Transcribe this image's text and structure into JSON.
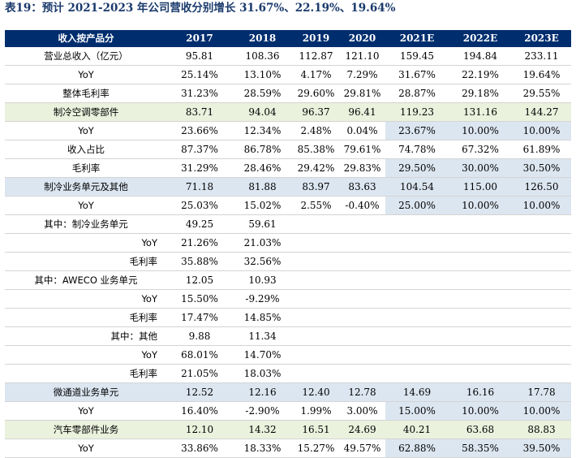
{
  "title": "表19：预计 2021-2023 年公司营收分别增长 31.67%、22.19%、19.64%",
  "header": {
    "label": "收入按产品分",
    "years": [
      "2017",
      "2018",
      "2019",
      "2020",
      "2021E",
      "2022E",
      "2023E"
    ]
  },
  "rows": [
    {
      "label": "营业总收入（亿元）",
      "values": [
        "95.81",
        "108.36",
        "112.87",
        "121.10",
        "159.45",
        "194.84",
        "233.11"
      ],
      "style": "",
      "indent": "0",
      "hl": []
    },
    {
      "label": "YoY",
      "values": [
        "25.14%",
        "13.10%",
        "4.17%",
        "7.29%",
        "31.67%",
        "22.19%",
        "19.64%"
      ],
      "style": "",
      "indent": "0",
      "hl": []
    },
    {
      "label": "整体毛利率",
      "values": [
        "31.23%",
        "28.59%",
        "29.60%",
        "29.81%",
        "28.87%",
        "29.18%",
        "29.55%"
      ],
      "style": "",
      "indent": "0",
      "hl": []
    },
    {
      "label": "制冷空调零部件",
      "values": [
        "83.71",
        "94.04",
        "96.37",
        "96.41",
        "119.23",
        "131.16",
        "144.27"
      ],
      "style": "green",
      "indent": "0",
      "hl": []
    },
    {
      "label": "YoY",
      "values": [
        "23.66%",
        "12.34%",
        "2.48%",
        "0.04%",
        "23.67%",
        "10.00%",
        "10.00%"
      ],
      "style": "",
      "indent": "0",
      "hl": [
        4,
        5,
        6
      ]
    },
    {
      "label": "收入占比",
      "values": [
        "87.37%",
        "86.78%",
        "85.38%",
        "79.61%",
        "74.78%",
        "67.32%",
        "61.89%"
      ],
      "style": "",
      "indent": "0",
      "hl": []
    },
    {
      "label": "毛利率",
      "values": [
        "31.29%",
        "28.46%",
        "29.42%",
        "29.83%",
        "29.50%",
        "30.00%",
        "30.50%"
      ],
      "style": "",
      "indent": "0",
      "hl": [
        4,
        5,
        6
      ]
    },
    {
      "label": "制冷业务单元及其他",
      "values": [
        "71.18",
        "81.88",
        "83.97",
        "83.63",
        "104.54",
        "115.00",
        "126.50"
      ],
      "style": "blue",
      "indent": "0",
      "hl": []
    },
    {
      "label": "YoY",
      "values": [
        "25.03%",
        "15.02%",
        "2.55%",
        "-0.40%",
        "25.00%",
        "10.00%",
        "10.00%"
      ],
      "style": "",
      "indent": "0",
      "hl": [
        4,
        5,
        6
      ]
    },
    {
      "label": "其中：制冷业务单元",
      "values": [
        "49.25",
        "59.61",
        "",
        "",
        "",
        "",
        ""
      ],
      "style": "",
      "indent": "0",
      "hl": []
    },
    {
      "label": "YoY",
      "values": [
        "21.26%",
        "21.03%",
        "",
        "",
        "",
        "",
        ""
      ],
      "style": "",
      "indent": "1",
      "hl": []
    },
    {
      "label": "毛利率",
      "values": [
        "35.88%",
        "32.56%",
        "",
        "",
        "",
        "",
        ""
      ],
      "style": "",
      "indent": "1",
      "hl": []
    },
    {
      "label": "其中：AWECO 业务单元",
      "values": [
        "12.05",
        "10.93",
        "",
        "",
        "",
        "",
        ""
      ],
      "style": "",
      "indent": "0",
      "hl": []
    },
    {
      "label": "YoY",
      "values": [
        "15.50%",
        "-9.29%",
        "",
        "",
        "",
        "",
        ""
      ],
      "style": "",
      "indent": "1",
      "hl": []
    },
    {
      "label": "毛利率",
      "values": [
        "17.47%",
        "14.85%",
        "",
        "",
        "",
        "",
        ""
      ],
      "style": "",
      "indent": "1",
      "hl": []
    },
    {
      "label": "其中：其他",
      "values": [
        "9.88",
        "11.34",
        "",
        "",
        "",
        "",
        ""
      ],
      "style": "",
      "indent": "1",
      "hl": []
    },
    {
      "label": "YoY",
      "values": [
        "68.01%",
        "14.70%",
        "",
        "",
        "",
        "",
        ""
      ],
      "style": "",
      "indent": "1",
      "hl": []
    },
    {
      "label": "毛利率",
      "values": [
        "21.05%",
        "18.03%",
        "",
        "",
        "",
        "",
        ""
      ],
      "style": "",
      "indent": "1",
      "hl": []
    },
    {
      "label": "微通道业务单元",
      "values": [
        "12.52",
        "12.16",
        "12.40",
        "12.78",
        "14.69",
        "16.16",
        "17.78"
      ],
      "style": "blue",
      "indent": "0",
      "hl": []
    },
    {
      "label": "YoY",
      "values": [
        "16.40%",
        "-2.90%",
        "1.99%",
        "3.00%",
        "15.00%",
        "10.00%",
        "10.00%"
      ],
      "style": "",
      "indent": "0",
      "hl": [
        4,
        5,
        6
      ]
    },
    {
      "label": "汽车零部件业务",
      "values": [
        "12.10",
        "14.32",
        "16.51",
        "24.69",
        "40.21",
        "63.68",
        "88.83"
      ],
      "style": "green",
      "indent": "0",
      "hl": []
    },
    {
      "label": "YoY",
      "values": [
        "33.86%",
        "18.33%",
        "15.27%",
        "49.57%",
        "62.88%",
        "58.35%",
        "39.50%"
      ],
      "style": "",
      "indent": "0",
      "hl": [
        4,
        5,
        6
      ]
    }
  ]
}
